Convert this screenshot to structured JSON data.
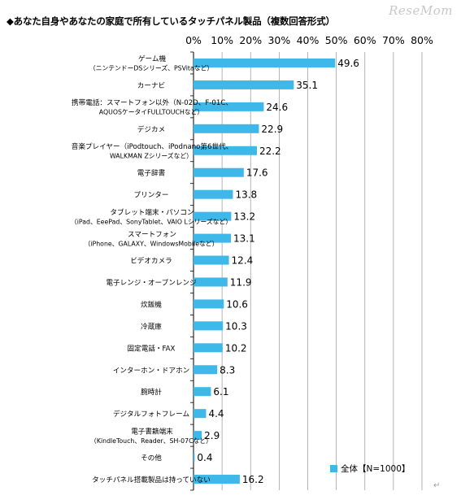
{
  "title": "◆あなた自身やあなたの家庭で所有しているタッチパネル製品（複数回答形式）",
  "watermark": "ReseMom",
  "return_mark": "↵",
  "colors": {
    "bar": "#3db8e8",
    "grid": "#a0a0a0",
    "axis": "#000000"
  },
  "chart_data": {
    "type": "bar",
    "orientation": "horizontal",
    "title": "◆あなた自身やあなたの家庭で所有しているタッチパネル製品（複数回答形式）",
    "xlim": [
      0,
      80
    ],
    "x_ticks": [
      "0%",
      "10%",
      "20%",
      "30%",
      "40%",
      "50%",
      "60%",
      "70%",
      "80%"
    ],
    "grid": true,
    "legend_position": "bottom-right",
    "series": [
      {
        "name": "全体【N=1000】",
        "color": "#3db8e8"
      }
    ],
    "categories": [
      [
        "ゲーム機",
        "（ニンテンドーDSシリーズ、PSVitaなど）"
      ],
      [
        "カーナビ"
      ],
      [
        "携帯電話：スマートフォン以外（N-02D、F-01C、",
        "AQUOSケータイFULLTOUCHなど）"
      ],
      [
        "デジカメ"
      ],
      [
        "音楽プレイヤー（iPodtouch、iPodnano第6世代、",
        "WALKMAN Zシリーズなど）"
      ],
      [
        "電子辞書"
      ],
      [
        "プリンター"
      ],
      [
        "タブレット端末・パソコン",
        "（iPad、EeePad、SonyTablet、VAIO Lシリーズなど）"
      ],
      [
        "スマートフォン",
        "（iPhone、GALAXY、WindowsMobileなど）"
      ],
      [
        "ビデオカメラ"
      ],
      [
        "電子レンジ・オーブンレンジ"
      ],
      [
        "炊飯機"
      ],
      [
        "冷蔵庫"
      ],
      [
        "固定電話・FAX"
      ],
      [
        "インターホン・ドアホン"
      ],
      [
        "腕時計"
      ],
      [
        "デジタルフォトフレーム"
      ],
      [
        "電子書籍端末",
        "（KindleTouch、Reader、SH-07Cなど）"
      ],
      [
        "その他"
      ],
      [
        "タッチパネル搭載製品は持っていない"
      ]
    ],
    "values": [
      49.6,
      35.1,
      24.6,
      22.9,
      22.2,
      17.6,
      13.8,
      13.2,
      13.1,
      12.4,
      11.9,
      10.6,
      10.3,
      10.2,
      8.3,
      6.1,
      4.4,
      2.9,
      0.4,
      16.2
    ]
  }
}
